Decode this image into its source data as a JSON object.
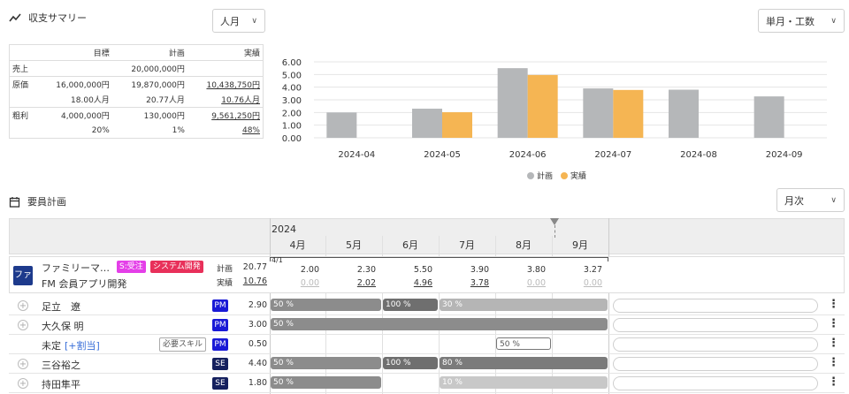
{
  "summary": {
    "title": "収支サマリー",
    "period_select": "人月",
    "view_select": "単月・工数",
    "table": {
      "headers": [
        "",
        "目標",
        "計画",
        "実績"
      ],
      "rows": [
        [
          "売上",
          "",
          "20,000,000円",
          ""
        ],
        [
          "原価",
          "16,000,000円",
          "19,870,000円",
          "10,438,750円"
        ],
        [
          "",
          "18.00人月",
          "20.77人月",
          "10.76人月"
        ],
        [
          "粗利",
          "4,000,000円",
          "130,000円",
          "9,561,250円"
        ],
        [
          "",
          "20%",
          "1%",
          "48%"
        ]
      ]
    }
  },
  "chart_data": {
    "type": "bar",
    "categories": [
      "2024-04",
      "2024-05",
      "2024-06",
      "2024-07",
      "2024-08",
      "2024-09"
    ],
    "series": [
      {
        "name": "計画",
        "values": [
          2.0,
          2.3,
          5.5,
          3.9,
          3.8,
          3.27
        ],
        "color": "#b5b7b9"
      },
      {
        "name": "実績",
        "values": [
          null,
          2.02,
          4.96,
          3.78,
          null,
          null
        ],
        "color": "#f5b553"
      }
    ],
    "y_ticks": [
      "0.00",
      "1.00",
      "2.00",
      "3.00",
      "4.00",
      "5.00",
      "6.00"
    ],
    "ylim": [
      0,
      6
    ],
    "grid": true,
    "legend": "bottom-center"
  },
  "staffing": {
    "title": "要員計画",
    "view_select": "月次",
    "year": "2024",
    "months": [
      "4月",
      "5月",
      "6月",
      "7月",
      "8月",
      "9月"
    ],
    "marker_date": "4/1",
    "project": {
      "badge": "ファ",
      "name": "ファミリーマ…",
      "tag1": "S:受注",
      "tag2": "システム開発",
      "subtitle": "FM 会員アプリ開発",
      "plan_label": "計画",
      "actual_label": "実績",
      "plan_total": "20.77",
      "actual_total": "10.76",
      "plan_values": [
        "2.00",
        "2.30",
        "5.50",
        "3.90",
        "3.80",
        "3.27"
      ],
      "actual_values": [
        "0.00",
        "2.02",
        "4.96",
        "3.78",
        "0.00",
        "0.00"
      ]
    },
    "members": [
      {
        "name": "足立　遼",
        "role": "PM",
        "total": "2.90"
      },
      {
        "name": "大久保 明",
        "role": "PM",
        "total": "3.00"
      },
      {
        "name": "未定",
        "assign": "[+割当]",
        "skill": "必要スキル",
        "role": "PM",
        "total": "0.50"
      },
      {
        "name": "三谷裕之",
        "role": "SE",
        "total": "4.40"
      },
      {
        "name": "持田隼平",
        "role": "SE",
        "total": "1.80"
      }
    ],
    "bars": [
      {
        "row": 0,
        "label": "50 %",
        "pct": 50
      },
      {
        "row": 0,
        "label": "100 %",
        "pct": 100
      },
      {
        "row": 0,
        "label": "30 %",
        "pct": 30
      },
      {
        "row": 1,
        "label": "50 %",
        "pct": 50
      },
      {
        "row": 2,
        "label": "50 %",
        "pct": 50
      },
      {
        "row": 3,
        "label": "50 %",
        "pct": 50
      },
      {
        "row": 3,
        "label": "100 %",
        "pct": 100
      },
      {
        "row": 3,
        "label": "80 %",
        "pct": 80
      },
      {
        "row": 4,
        "label": "50 %",
        "pct": 50
      },
      {
        "row": 4,
        "label": "10 %",
        "pct": 10
      }
    ]
  }
}
